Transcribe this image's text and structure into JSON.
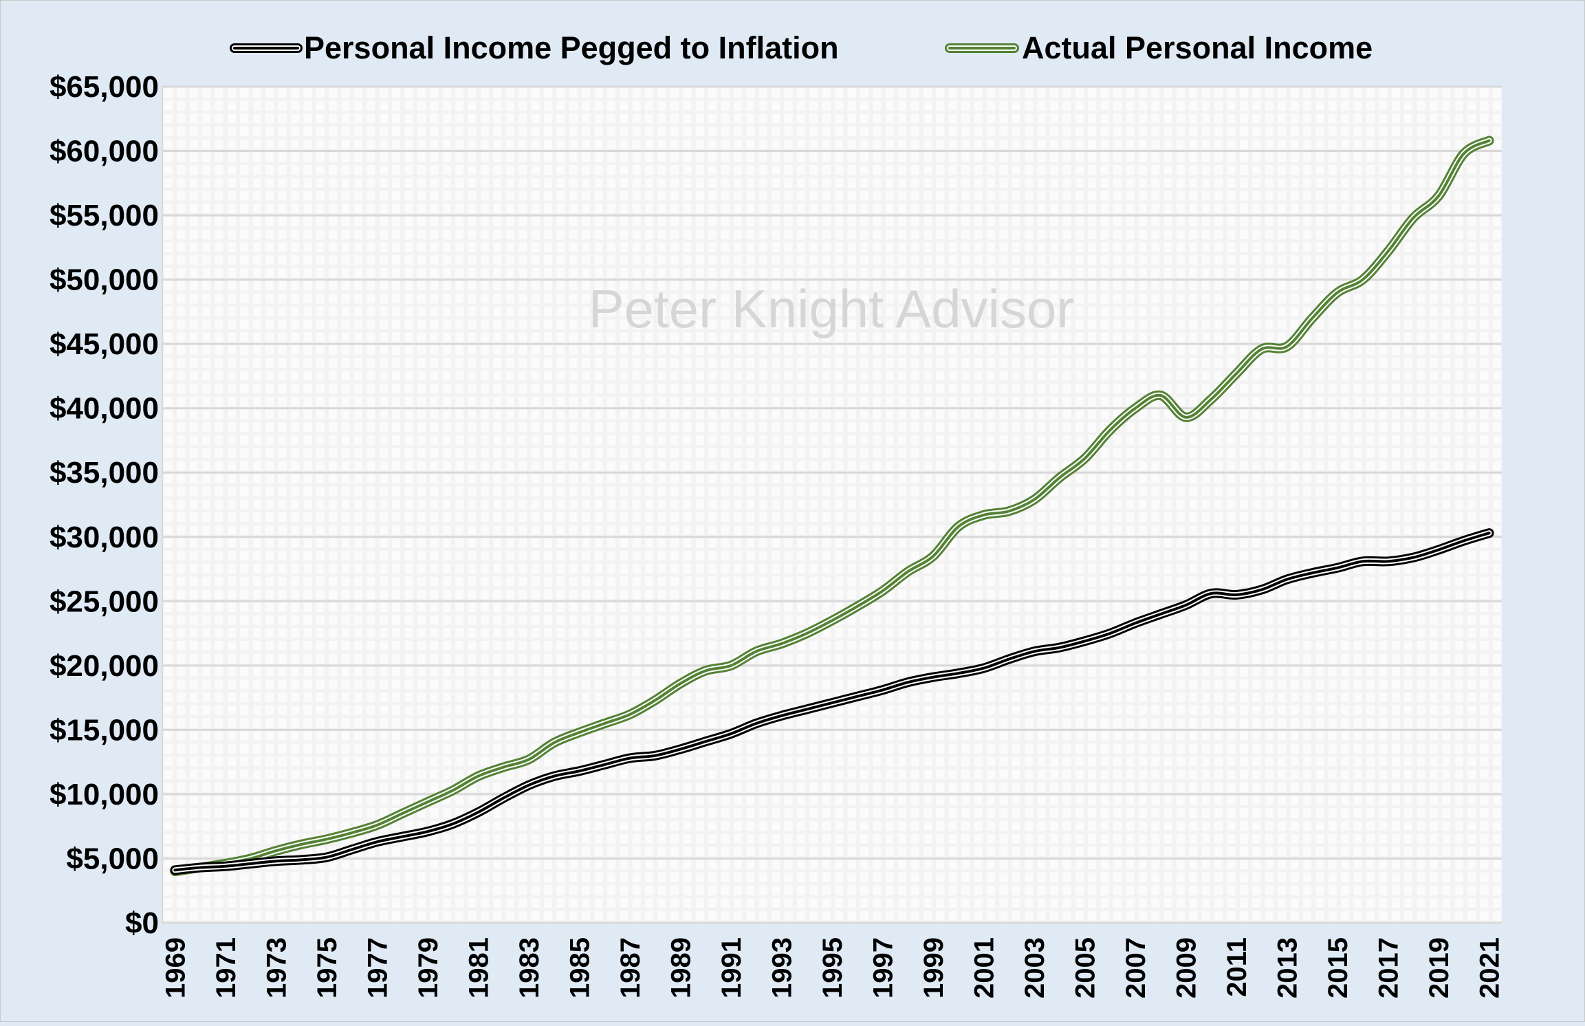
{
  "chart_data": {
    "type": "line",
    "title": "",
    "xlabel": "",
    "ylabel": "",
    "watermark": "Peter Knight Advisor",
    "ylim": [
      0,
      65000
    ],
    "y_ticks": [
      0,
      5000,
      10000,
      15000,
      20000,
      25000,
      30000,
      35000,
      40000,
      45000,
      50000,
      55000,
      60000,
      65000
    ],
    "y_tick_labels": [
      "$0",
      "$5,000",
      "$10,000",
      "$15,000",
      "$20,000",
      "$25,000",
      "$30,000",
      "$35,000",
      "$40,000",
      "$45,000",
      "$50,000",
      "$55,000",
      "$60,000",
      "$65,000"
    ],
    "x": [
      1969,
      1970,
      1971,
      1972,
      1973,
      1974,
      1975,
      1976,
      1977,
      1978,
      1979,
      1980,
      1981,
      1982,
      1983,
      1984,
      1985,
      1986,
      1987,
      1988,
      1989,
      1990,
      1991,
      1992,
      1993,
      1994,
      1995,
      1996,
      1997,
      1998,
      1999,
      2000,
      2001,
      2002,
      2003,
      2004,
      2005,
      2006,
      2007,
      2008,
      2009,
      2010,
      2011,
      2012,
      2013,
      2014,
      2015,
      2016,
      2017,
      2018,
      2019,
      2020,
      2021
    ],
    "x_tick_labels": [
      "1969",
      "1971",
      "1973",
      "1975",
      "1977",
      "1979",
      "1981",
      "1983",
      "1985",
      "1987",
      "1989",
      "1991",
      "1993",
      "1995",
      "1997",
      "1999",
      "2001",
      "2003",
      "2005",
      "2007",
      "2009",
      "2011",
      "2013",
      "2015",
      "2017",
      "2019",
      "2021"
    ],
    "grid": true,
    "legend_position": "top",
    "series": [
      {
        "name": "Personal Income Pegged to Inflation",
        "color": "#000000",
        "values": [
          4100,
          4300,
          4400,
          4600,
          4800,
          4900,
          5100,
          5700,
          6300,
          6700,
          7100,
          7700,
          8600,
          9700,
          10700,
          11400,
          11800,
          12300,
          12800,
          13000,
          13500,
          14100,
          14700,
          15500,
          16100,
          16600,
          17100,
          17600,
          18100,
          18700,
          19100,
          19400,
          19800,
          20500,
          21100,
          21400,
          21900,
          22500,
          23300,
          24000,
          24700,
          25600,
          25500,
          25900,
          26700,
          27200,
          27600,
          28100,
          28100,
          28400,
          29000,
          29700,
          30300
        ]
      },
      {
        "name": "Actual Personal Income",
        "color": "#548235",
        "values": [
          4000,
          4300,
          4600,
          5000,
          5600,
          6100,
          6500,
          7000,
          7600,
          8500,
          9400,
          10300,
          11400,
          12100,
          12700,
          14000,
          14800,
          15500,
          16200,
          17300,
          18600,
          19600,
          20000,
          21100,
          21700,
          22500,
          23500,
          24600,
          25800,
          27300,
          28500,
          30800,
          31700,
          32000,
          32900,
          34600,
          36100,
          38300,
          40000,
          41000,
          39300,
          40700,
          42700,
          44600,
          44800,
          47000,
          49000,
          50000,
          52200,
          54800,
          56500,
          59800,
          60800
        ]
      }
    ]
  }
}
